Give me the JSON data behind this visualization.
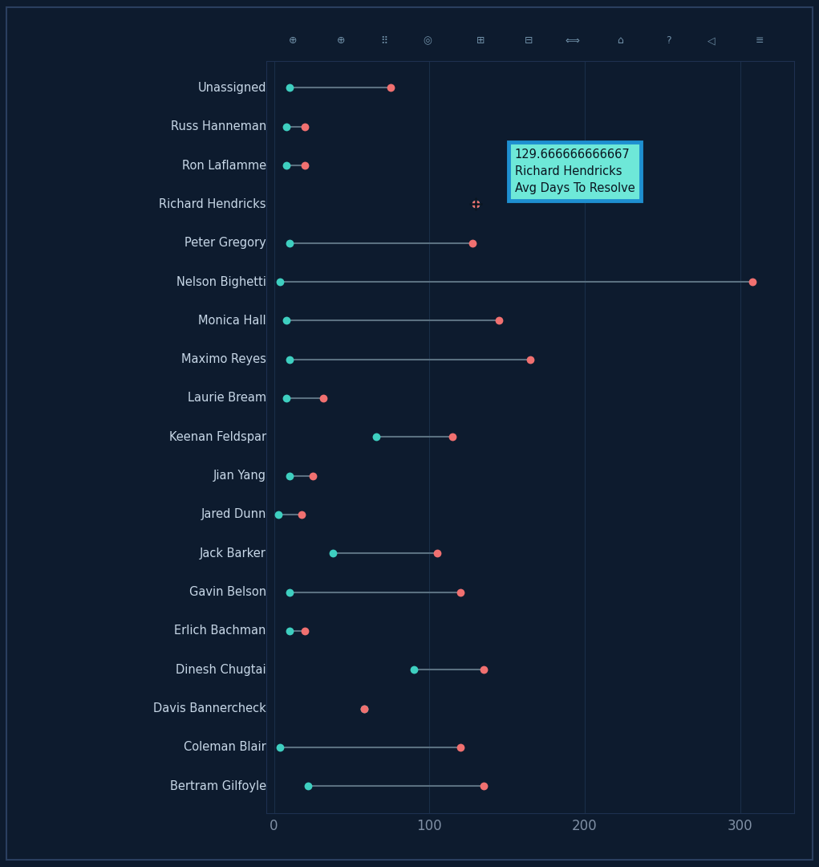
{
  "background_color": "#0d1b2e",
  "plot_bg_color": "#0d1b2e",
  "line_color": "#5a7080",
  "dot_color_cyan": "#3ecfc0",
  "dot_color_red": "#f07070",
  "names": [
    "Unassigned",
    "Russ Hanneman",
    "Ron Laflamme",
    "Richard Hendricks",
    "Peter Gregory",
    "Nelson Bighetti",
    "Monica Hall",
    "Maximo Reyes",
    "Laurie Bream",
    "Keenan Feldspar",
    "Jian Yang",
    "Jared Dunn",
    "Jack Barker",
    "Gavin Belson",
    "Erlich Bachman",
    "Dinesh Chugtai",
    "Davis Bannercheck",
    "Coleman Blair",
    "Bertram Gilfoyle"
  ],
  "cyan_vals": [
    10,
    8,
    8,
    130,
    10,
    4,
    8,
    10,
    8,
    66,
    10,
    3,
    38,
    10,
    10,
    90,
    58,
    4,
    22
  ],
  "red_vals": [
    75,
    20,
    20,
    130,
    128,
    308,
    145,
    165,
    32,
    115,
    25,
    18,
    105,
    120,
    20,
    135,
    58,
    120,
    135
  ],
  "tooltip_lines": [
    "129.666666666667",
    "Richard Hendricks",
    "Avg Days To Resolve"
  ],
  "xlim": [
    -5,
    335
  ],
  "xticks": [
    0,
    100,
    200,
    300
  ],
  "dot_size": 50,
  "line_width": 1.5,
  "label_color": "#c8d8e8",
  "tick_color": "#8090a5",
  "grid_color": "#1a2e48",
  "spine_color": "#1e3050",
  "outer_border_color": "#2a3f5f",
  "toolbar_bg": "#111e30",
  "scroll_color": "#2e4060",
  "tooltip_bg": "#6ee8d8",
  "tooltip_border": "#1e8fd0",
  "tooltip_text_color": "#0a1520"
}
